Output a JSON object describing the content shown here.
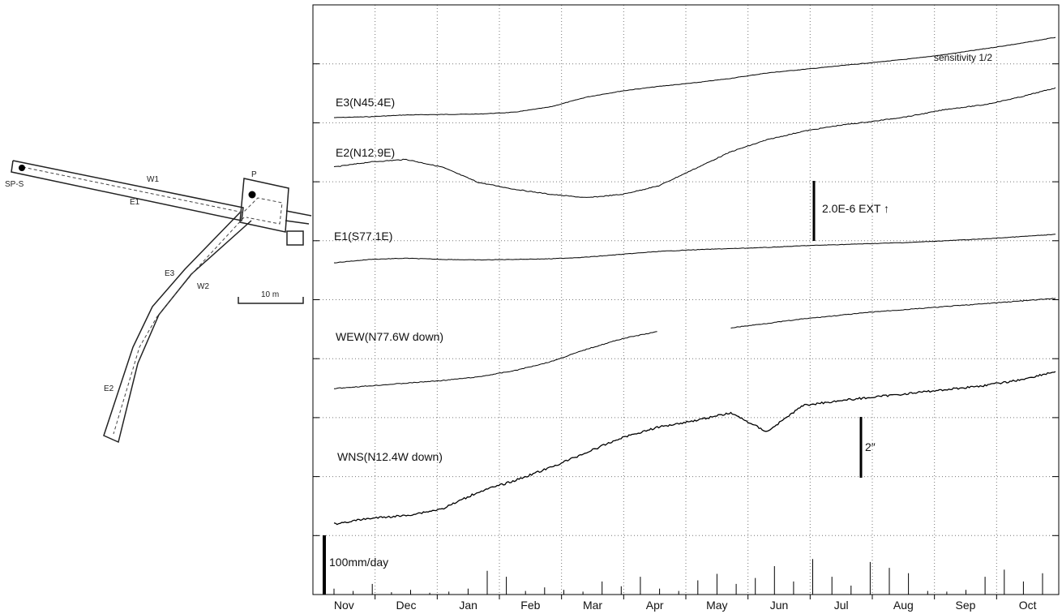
{
  "map": {
    "labels": {
      "sps": "SP-S",
      "w1": "W1",
      "e1": "E1",
      "p": "P",
      "e3": "E3",
      "w2": "W2",
      "e2": "E2",
      "scale": "10 m"
    }
  },
  "chart_data": {
    "type": "line",
    "x_tick_labels": [
      "Nov",
      "Dec",
      "Jan",
      "Feb",
      "Mar",
      "Apr",
      "May",
      "Jun",
      "Jul",
      "Aug",
      "Sep",
      "Oct"
    ],
    "grid": true,
    "series": [
      {
        "name": "E3(N45.4E)",
        "note": "sensitivity 1/2",
        "values": [
          0,
          0.1,
          0.3,
          0.35,
          0.4,
          0.6,
          1.2,
          2.3,
          3.0,
          3.5,
          3.9,
          4.4,
          5.0,
          5.4,
          5.8,
          6.2,
          6.6,
          7.1,
          7.7,
          8.3,
          9.0
        ]
      },
      {
        "name": "E2(N12.9E)",
        "values": [
          0,
          0.6,
          0.9,
          0,
          -1.8,
          -2.6,
          -3.2,
          -3.6,
          -3.2,
          -2.2,
          -0.2,
          1.8,
          3.2,
          4.2,
          4.9,
          5.4,
          6.0,
          6.8,
          7.3,
          8.2,
          9.3
        ]
      },
      {
        "name": "E1(S77.1E)",
        "values": [
          0,
          0.6,
          0.8,
          0.6,
          0.5,
          0.6,
          0.7,
          1.0,
          1.5,
          2.0,
          2.3,
          2.5,
          2.7,
          3.0,
          3.2,
          3.4,
          3.6,
          3.9,
          4.2,
          4.6,
          5.0
        ]
      },
      {
        "name": "WEW(N77.6W down)",
        "values": [
          0,
          0.3,
          0.6,
          0.9,
          1.3,
          2.0,
          3.0,
          4.4,
          5.6,
          6.4,
          null,
          6.8,
          7.3,
          7.8,
          8.2,
          8.6,
          8.9,
          9.2,
          9.5,
          9.8,
          10.1
        ]
      },
      {
        "name": "WNS(N12.4W down)",
        "values": [
          0,
          0.6,
          0.9,
          1.6,
          3.4,
          4.6,
          6.0,
          7.6,
          9.2,
          10.3,
          11.0,
          11.8,
          9.8,
          12.6,
          13.1,
          13.5,
          13.9,
          14.3,
          14.7,
          15.3,
          16.2
        ]
      }
    ],
    "scale_bars": [
      {
        "label": "2.0E-6  EXT ↑",
        "applies_to": "strain"
      },
      {
        "label": "2″",
        "applies_to": "tilt"
      }
    ],
    "rain": {
      "label": "100mm/day",
      "bar_values": [
        0.1,
        0.06,
        0.18,
        0.04,
        0.08,
        0.03,
        0.05,
        0.1,
        0.4,
        0.3,
        0.06,
        0.12,
        0.08,
        0.05,
        0.22,
        0.14,
        0.3,
        0.1,
        0.06,
        0.24,
        0.35,
        0.18,
        0.28,
        0.48,
        0.22,
        0.6,
        0.3,
        0.15,
        0.55,
        0.45,
        0.36,
        0.06,
        0.05,
        0.08,
        0.3,
        0.42,
        0.22,
        0.36
      ]
    }
  }
}
